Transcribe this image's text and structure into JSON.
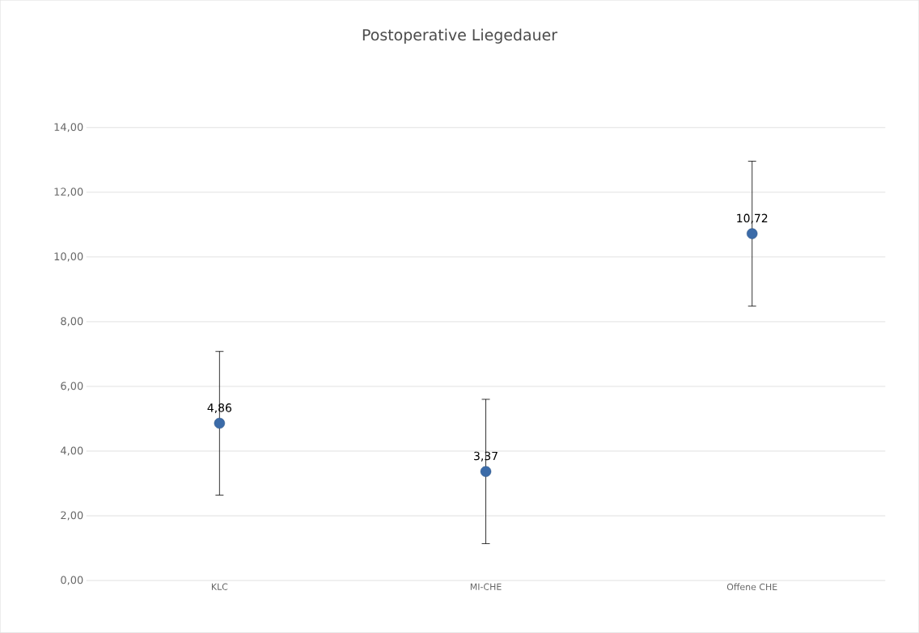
{
  "chart_data": {
    "type": "scatter",
    "title": "Postoperative Liegedauer",
    "categories": [
      "KLC",
      "MI-CHE",
      "Offene CHE"
    ],
    "values": [
      4.86,
      3.37,
      10.72
    ],
    "errors": [
      2.22,
      2.23,
      2.24
    ],
    "value_labels": [
      "4,86",
      "3,37",
      "10,72"
    ],
    "color": "#3b6ba8",
    "grid": "y",
    "ylim": [
      0,
      14
    ],
    "yticks": [
      {
        "value": 0,
        "label": "0,00"
      },
      {
        "value": 2,
        "label": "2,00"
      },
      {
        "value": 4,
        "label": "4,00"
      },
      {
        "value": 6,
        "label": "6,00"
      },
      {
        "value": 8,
        "label": "8,00"
      },
      {
        "value": 10,
        "label": "10,00"
      },
      {
        "value": 12,
        "label": "12,00"
      },
      {
        "value": 14,
        "label": "14,00"
      }
    ]
  }
}
